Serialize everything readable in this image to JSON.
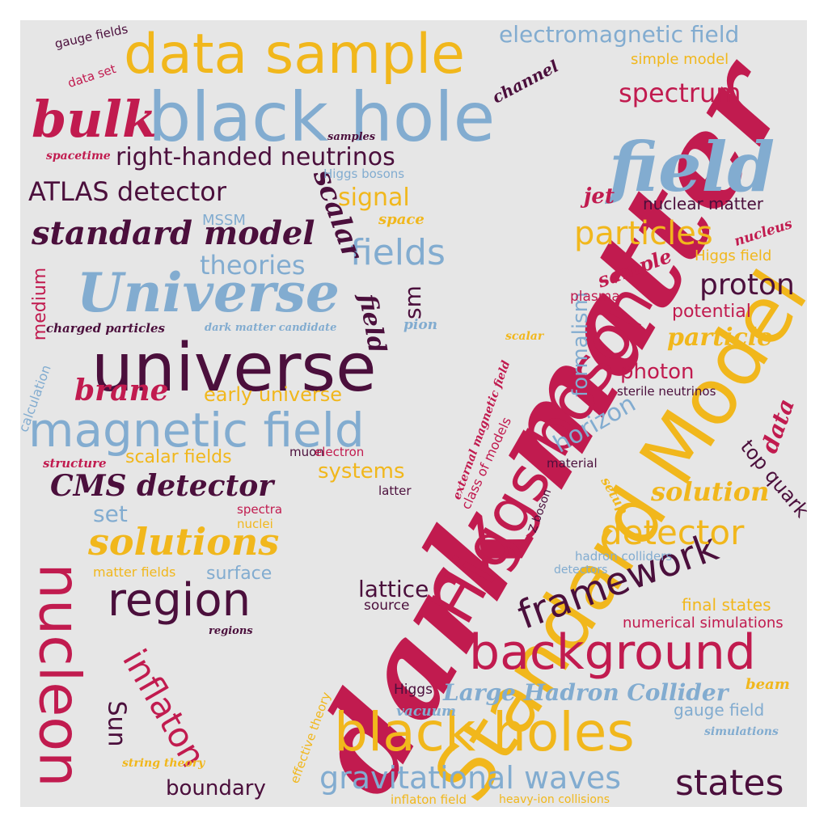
{
  "palette": {
    "crimson": "#c11b4f",
    "steel_blue": "#82acd0",
    "gold": "#f1b71c",
    "plum": "#4b0f3c",
    "background": "#e6e6e6"
  },
  "words": [
    {
      "id": "w0",
      "text": "dark matter",
      "color": "crimson"
    },
    {
      "id": "w1",
      "text": "Standard Model",
      "color": "gold"
    },
    {
      "id": "w2",
      "text": "Higgs boson",
      "color": "crimson"
    },
    {
      "id": "w3",
      "text": "black hole",
      "color": "steel_blue"
    },
    {
      "id": "w4",
      "text": "universe",
      "color": "plum"
    },
    {
      "id": "w5",
      "text": "data sample",
      "color": "gold"
    },
    {
      "id": "w6",
      "text": "field",
      "color": "steel_blue"
    },
    {
      "id": "w7",
      "text": "Universe",
      "color": "steel_blue"
    },
    {
      "id": "w8",
      "text": "magnetic field",
      "color": "steel_blue"
    },
    {
      "id": "w9",
      "text": "nucleon",
      "color": "crimson"
    },
    {
      "id": "w10",
      "text": "black holes",
      "color": "gold"
    },
    {
      "id": "w11",
      "text": "background",
      "color": "crimson"
    },
    {
      "id": "w12",
      "text": "bulk",
      "color": "crimson"
    },
    {
      "id": "w13",
      "text": "region",
      "color": "plum"
    },
    {
      "id": "w14",
      "text": "framework",
      "color": "plum"
    },
    {
      "id": "w15",
      "text": "standard model",
      "color": "plum"
    },
    {
      "id": "w16",
      "text": "solutions",
      "color": "gold"
    },
    {
      "id": "w17",
      "text": "gravitational waves",
      "color": "steel_blue"
    },
    {
      "id": "w18",
      "text": "particles",
      "color": "gold"
    },
    {
      "id": "w19",
      "text": "fields",
      "color": "steel_blue"
    },
    {
      "id": "w20",
      "text": "detector",
      "color": "gold"
    },
    {
      "id": "w21",
      "text": "states",
      "color": "plum"
    },
    {
      "id": "w22",
      "text": "inflaton",
      "color": "crimson"
    },
    {
      "id": "w23",
      "text": "CMS detector",
      "color": "plum"
    },
    {
      "id": "w24",
      "text": "electromagnetic field",
      "color": "steel_blue"
    },
    {
      "id": "w25",
      "text": "right-handed neutrinos",
      "color": "plum"
    },
    {
      "id": "w26",
      "text": "ATLAS detector",
      "color": "plum"
    },
    {
      "id": "w27",
      "text": "spectrum",
      "color": "crimson"
    },
    {
      "id": "w28",
      "text": "proton",
      "color": "plum"
    },
    {
      "id": "w29",
      "text": "theories",
      "color": "steel_blue"
    },
    {
      "id": "w30",
      "text": "signal",
      "color": "gold"
    },
    {
      "id": "w31",
      "text": "scalar",
      "color": "plum"
    },
    {
      "id": "w32",
      "text": "field",
      "color": "plum"
    },
    {
      "id": "w33",
      "text": "Large Hadron Collider",
      "color": "steel_blue"
    },
    {
      "id": "w34",
      "text": "brane",
      "color": "crimson"
    },
    {
      "id": "w35",
      "text": "solution",
      "color": "gold"
    },
    {
      "id": "w36",
      "text": "horizon",
      "color": "steel_blue"
    },
    {
      "id": "w37",
      "text": "Sun",
      "color": "plum"
    },
    {
      "id": "w38",
      "text": "early universe",
      "color": "gold"
    },
    {
      "id": "w39",
      "text": "boundary",
      "color": "plum"
    },
    {
      "id": "w40",
      "text": "top quark",
      "color": "plum"
    },
    {
      "id": "w41",
      "text": "data",
      "color": "crimson"
    },
    {
      "id": "w42",
      "text": "photon",
      "color": "crimson"
    },
    {
      "id": "w43",
      "text": "particle",
      "color": "gold"
    },
    {
      "id": "w44",
      "text": "formalism",
      "color": "steel_blue"
    },
    {
      "id": "w45",
      "text": "sm",
      "color": "plum"
    },
    {
      "id": "w46",
      "text": "lattice",
      "color": "plum"
    },
    {
      "id": "w47",
      "text": "systems",
      "color": "gold"
    },
    {
      "id": "w48",
      "text": "set",
      "color": "steel_blue"
    },
    {
      "id": "w49",
      "text": "scalar fields",
      "color": "gold"
    },
    {
      "id": "w50",
      "text": "medium",
      "color": "crimson"
    },
    {
      "id": "w51",
      "text": "surface",
      "color": "steel_blue"
    },
    {
      "id": "w52",
      "text": "potential",
      "color": "crimson"
    },
    {
      "id": "w53",
      "text": "sample",
      "color": "crimson"
    },
    {
      "id": "w54",
      "text": "jet",
      "color": "crimson"
    },
    {
      "id": "w55",
      "text": "nuclear matter",
      "color": "plum"
    },
    {
      "id": "w56",
      "text": "Higgs field",
      "color": "gold"
    },
    {
      "id": "w57",
      "text": "final states",
      "color": "gold"
    },
    {
      "id": "w58",
      "text": "numerical simulations",
      "color": "crimson"
    },
    {
      "id": "w59",
      "text": "gauge field",
      "color": "steel_blue"
    },
    {
      "id": "w60",
      "text": "channel",
      "color": "plum"
    },
    {
      "id": "w61",
      "text": "simple model",
      "color": "gold"
    },
    {
      "id": "w62",
      "text": "MSSM",
      "color": "steel_blue"
    },
    {
      "id": "w63",
      "text": "Higgs bosons",
      "color": "steel_blue"
    },
    {
      "id": "w64",
      "text": "space",
      "color": "gold"
    },
    {
      "id": "w65",
      "text": "nucleus",
      "color": "crimson"
    },
    {
      "id": "w66",
      "text": "plasma",
      "color": "crimson"
    },
    {
      "id": "w67",
      "text": "charged particles",
      "color": "plum"
    },
    {
      "id": "w68",
      "text": "dark matter candidate",
      "color": "steel_blue"
    },
    {
      "id": "w69",
      "text": "pion",
      "color": "steel_blue"
    },
    {
      "id": "w70",
      "text": "scalar",
      "color": "gold"
    },
    {
      "id": "w71",
      "text": "calculation",
      "color": "steel_blue"
    },
    {
      "id": "w72",
      "text": "sterile neutrinos",
      "color": "plum"
    },
    {
      "id": "w73",
      "text": "external magnetic field",
      "color": "crimson"
    },
    {
      "id": "w74",
      "text": "class of models",
      "color": "crimson"
    },
    {
      "id": "w75",
      "text": "muon",
      "color": "plum"
    },
    {
      "id": "w76",
      "text": "electron",
      "color": "crimson"
    },
    {
      "id": "w77",
      "text": "structure",
      "color": "crimson"
    },
    {
      "id": "w78",
      "text": "material",
      "color": "plum"
    },
    {
      "id": "w79",
      "text": "latter",
      "color": "plum"
    },
    {
      "id": "w80",
      "text": "Z boson",
      "color": "plum"
    },
    {
      "id": "w81",
      "text": "setup",
      "color": "gold"
    },
    {
      "id": "w82",
      "text": "spectra",
      "color": "crimson"
    },
    {
      "id": "w83",
      "text": "nuclei",
      "color": "gold"
    },
    {
      "id": "w84",
      "text": "matter fields",
      "color": "gold"
    },
    {
      "id": "w85",
      "text": "hadron colliders",
      "color": "steel_blue"
    },
    {
      "id": "w86",
      "text": "detectors",
      "color": "steel_blue"
    },
    {
      "id": "w87",
      "text": "source",
      "color": "plum"
    },
    {
      "id": "w88",
      "text": "regions",
      "color": "plum"
    },
    {
      "id": "w89",
      "text": "Higgs",
      "color": "plum"
    },
    {
      "id": "w90",
      "text": "vacuum",
      "color": "steel_blue"
    },
    {
      "id": "w91",
      "text": "beam",
      "color": "gold"
    },
    {
      "id": "w92",
      "text": "simulations",
      "color": "steel_blue"
    },
    {
      "id": "w93",
      "text": "effective theory",
      "color": "gold"
    },
    {
      "id": "w94",
      "text": "string theory",
      "color": "gold"
    },
    {
      "id": "w95",
      "text": "inflaton field",
      "color": "gold"
    },
    {
      "id": "w96",
      "text": "heavy-ion collisions",
      "color": "gold"
    },
    {
      "id": "w97",
      "text": "gauge fields",
      "color": "plum"
    },
    {
      "id": "w98",
      "text": "data set",
      "color": "crimson"
    },
    {
      "id": "w99",
      "text": "samples",
      "color": "plum"
    },
    {
      "id": "w100",
      "text": "spacetime",
      "color": "crimson"
    }
  ]
}
